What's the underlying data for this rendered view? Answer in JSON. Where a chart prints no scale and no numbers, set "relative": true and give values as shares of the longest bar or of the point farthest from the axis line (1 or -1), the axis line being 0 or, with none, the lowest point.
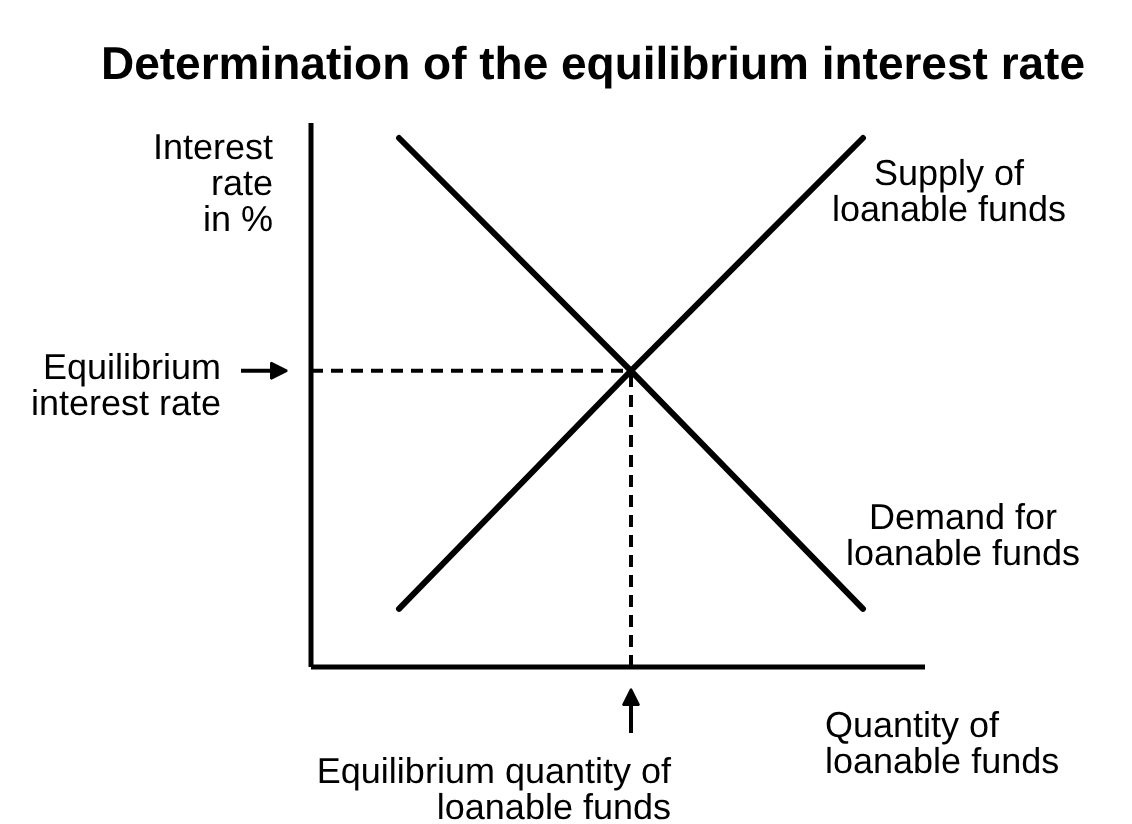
{
  "chart_data": {
    "type": "line",
    "title": "Determination of the equilibrium interest rate",
    "xlabel": "Quantity of\nloanable funds",
    "ylabel": "Interest\nrate\nin %",
    "relative": true,
    "categories": [
      null,
      null,
      null
    ],
    "series": [
      {
        "name": "Supply of\nloanable funds",
        "color": "#000000",
        "values": [
          0.11,
          0.56,
          1
        ]
      },
      {
        "name": "Demand for\nloanable funds",
        "color": "#000000",
        "values": [
          1,
          0.56,
          0.11
        ]
      }
    ],
    "ref_lines": [
      {
        "axis": "y",
        "value": 0.56,
        "label": "Equilibrium\ninterest rate",
        "line_style": "dashed"
      }
    ],
    "annotations": [
      "Equilibrium quantity of\nloanable funds"
    ]
  }
}
